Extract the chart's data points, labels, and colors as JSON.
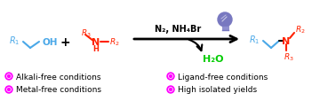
{
  "bg_color": "#ffffff",
  "blue": "#4aa8e8",
  "red": "#ff2200",
  "green": "#00cc00",
  "black": "#000000",
  "magenta": "#ff00ff",
  "bulb_body": "#7878c0",
  "bulb_base": "#9090d0",
  "conditions_text": "N₂, NH₄Br",
  "byproduct_text": "H₂O",
  "bullet_labels": [
    "Alkali-free conditions",
    "Metal-free conditions",
    "Ligand-free conditions",
    "High isolated yields"
  ],
  "figsize": [
    3.78,
    1.15
  ],
  "dpi": 100
}
